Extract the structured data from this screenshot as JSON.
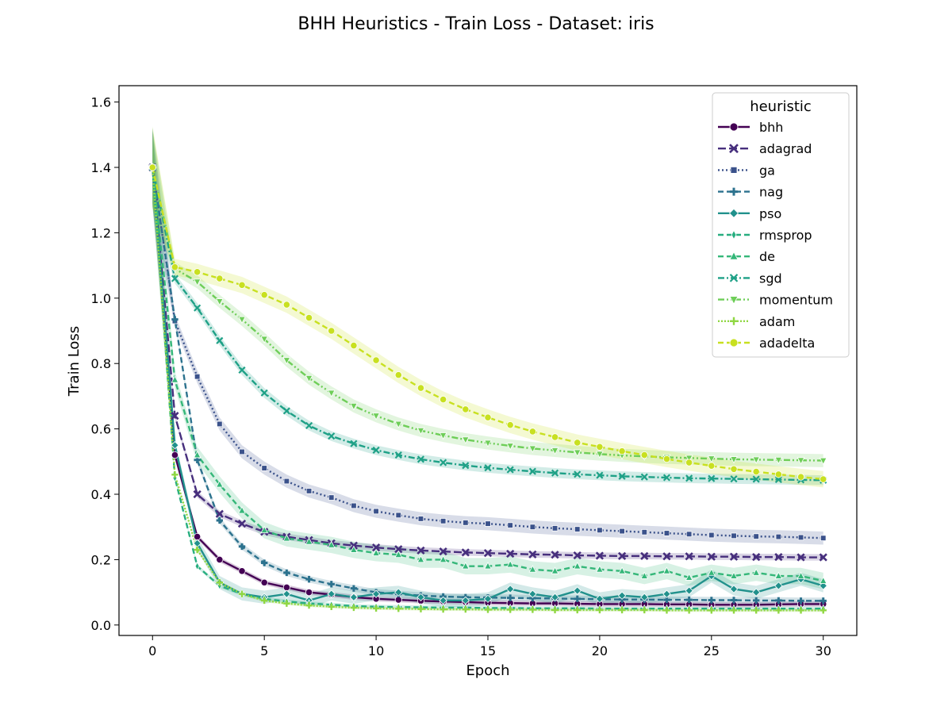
{
  "chart_data": {
    "type": "line",
    "title": "BHH Heuristics - Train Loss - Dataset: iris",
    "xlabel": "Epoch",
    "ylabel": "Train Loss",
    "xlim": [
      -1.5,
      31.5
    ],
    "ylim": [
      -0.032,
      1.65
    ],
    "xticks": [
      0,
      5,
      10,
      15,
      20,
      25,
      30
    ],
    "yticks": [
      0.0,
      0.2,
      0.4,
      0.6,
      0.8,
      1.0,
      1.2,
      1.4,
      1.6
    ],
    "grid": false,
    "legend": {
      "title": "heuristic",
      "placement": "top-right"
    },
    "x": [
      0,
      1,
      2,
      3,
      4,
      5,
      6,
      7,
      8,
      9,
      10,
      11,
      12,
      13,
      14,
      15,
      16,
      17,
      18,
      19,
      20,
      21,
      22,
      23,
      24,
      25,
      26,
      27,
      28,
      29,
      30
    ],
    "series": [
      {
        "name": "bhh",
        "color": "#440154",
        "dash": "solid",
        "marker": "circle",
        "band": 0.008,
        "values": [
          1.4,
          0.52,
          0.27,
          0.2,
          0.165,
          0.13,
          0.115,
          0.1,
          0.093,
          0.085,
          0.08,
          0.077,
          0.074,
          0.072,
          0.07,
          0.068,
          0.067,
          0.066,
          0.066,
          0.065,
          0.064,
          0.064,
          0.064,
          0.063,
          0.063,
          0.062,
          0.062,
          0.062,
          0.063,
          0.064,
          0.064
        ]
      },
      {
        "name": "adagrad",
        "color": "#472f7d",
        "dash": "long",
        "marker": "x",
        "band": 0.01,
        "values": [
          1.4,
          0.64,
          0.4,
          0.34,
          0.31,
          0.285,
          0.27,
          0.26,
          0.25,
          0.243,
          0.237,
          0.232,
          0.228,
          0.225,
          0.222,
          0.22,
          0.218,
          0.216,
          0.215,
          0.213,
          0.212,
          0.211,
          0.211,
          0.21,
          0.21,
          0.209,
          0.209,
          0.208,
          0.208,
          0.207,
          0.207
        ]
      },
      {
        "name": "ga",
        "color": "#3b528b",
        "dash": "dot",
        "marker": "square",
        "band": 0.02,
        "values": [
          1.4,
          0.93,
          0.76,
          0.615,
          0.53,
          0.48,
          0.44,
          0.41,
          0.39,
          0.365,
          0.348,
          0.336,
          0.325,
          0.318,
          0.313,
          0.31,
          0.305,
          0.3,
          0.296,
          0.293,
          0.29,
          0.287,
          0.284,
          0.281,
          0.278,
          0.275,
          0.273,
          0.271,
          0.27,
          0.268,
          0.266
        ]
      },
      {
        "name": "nag",
        "color": "#2c728e",
        "dash": "dashed",
        "marker": "plus",
        "band": 0.01,
        "values": [
          1.4,
          0.935,
          0.505,
          0.32,
          0.24,
          0.19,
          0.16,
          0.14,
          0.125,
          0.112,
          0.1,
          0.095,
          0.09,
          0.087,
          0.085,
          0.084,
          0.083,
          0.082,
          0.081,
          0.08,
          0.079,
          0.078,
          0.078,
          0.077,
          0.077,
          0.076,
          0.076,
          0.075,
          0.075,
          0.074,
          0.074
        ]
      },
      {
        "name": "pso",
        "color": "#21918c",
        "dash": "solid",
        "marker": "diamond",
        "band": 0.02,
        "values": [
          1.4,
          0.55,
          0.25,
          0.13,
          0.095,
          0.085,
          0.095,
          0.075,
          0.095,
          0.085,
          0.095,
          0.1,
          0.085,
          0.075,
          0.075,
          0.08,
          0.11,
          0.095,
          0.085,
          0.105,
          0.08,
          0.09,
          0.085,
          0.095,
          0.105,
          0.15,
          0.11,
          0.1,
          0.12,
          0.14,
          0.12
        ]
      },
      {
        "name": "rmsprop",
        "color": "#28ae80",
        "dash": "dashed",
        "marker": "thin_diamond",
        "band": 0.006,
        "values": [
          1.4,
          0.45,
          0.18,
          0.12,
          0.095,
          0.08,
          0.072,
          0.066,
          0.062,
          0.058,
          0.056,
          0.055,
          0.054,
          0.053,
          0.053,
          0.052,
          0.052,
          0.051,
          0.051,
          0.051,
          0.05,
          0.05,
          0.05,
          0.05,
          0.05,
          0.05,
          0.05,
          0.05,
          0.05,
          0.05,
          0.05
        ]
      },
      {
        "name": "de",
        "color": "#35b779",
        "dash": "dashed",
        "marker": "triangle-up",
        "band": 0.025,
        "values": [
          1.4,
          0.75,
          0.52,
          0.43,
          0.35,
          0.29,
          0.265,
          0.255,
          0.245,
          0.23,
          0.22,
          0.215,
          0.2,
          0.2,
          0.18,
          0.18,
          0.185,
          0.17,
          0.165,
          0.18,
          0.17,
          0.165,
          0.15,
          0.165,
          0.145,
          0.16,
          0.15,
          0.16,
          0.15,
          0.15,
          0.135
        ]
      },
      {
        "name": "sgd",
        "color": "#1fa187",
        "dash": "dashdot",
        "marker": "x-filled",
        "band": 0.015,
        "values": [
          1.4,
          1.06,
          0.97,
          0.87,
          0.78,
          0.71,
          0.655,
          0.61,
          0.578,
          0.555,
          0.535,
          0.52,
          0.507,
          0.497,
          0.488,
          0.481,
          0.475,
          0.47,
          0.465,
          0.461,
          0.458,
          0.455,
          0.453,
          0.451,
          0.449,
          0.448,
          0.447,
          0.446,
          0.445,
          0.444,
          0.443
        ]
      },
      {
        "name": "momentum",
        "color": "#6ece58",
        "dash": "dashdotdot",
        "marker": "triangle-down",
        "band": 0.02,
        "values": [
          1.4,
          1.09,
          1.05,
          0.99,
          0.935,
          0.875,
          0.81,
          0.755,
          0.71,
          0.67,
          0.64,
          0.615,
          0.595,
          0.58,
          0.567,
          0.557,
          0.548,
          0.54,
          0.534,
          0.528,
          0.523,
          0.519,
          0.516,
          0.513,
          0.511,
          0.509,
          0.507,
          0.506,
          0.505,
          0.504,
          0.503
        ]
      },
      {
        "name": "adam",
        "color": "#90d743",
        "dash": "dotted2",
        "marker": "plus-filled",
        "band": 0.005,
        "values": [
          1.4,
          0.46,
          0.23,
          0.13,
          0.095,
          0.075,
          0.066,
          0.06,
          0.056,
          0.053,
          0.051,
          0.05,
          0.049,
          0.048,
          0.048,
          0.047,
          0.047,
          0.047,
          0.046,
          0.046,
          0.046,
          0.046,
          0.046,
          0.045,
          0.045,
          0.045,
          0.045,
          0.045,
          0.045,
          0.045,
          0.045
        ]
      },
      {
        "name": "adadelta",
        "color": "#c8e020",
        "dash": "dashed",
        "marker": "circle",
        "band": 0.025,
        "values": [
          1.4,
          1.095,
          1.08,
          1.06,
          1.04,
          1.01,
          0.98,
          0.94,
          0.9,
          0.855,
          0.81,
          0.765,
          0.725,
          0.69,
          0.66,
          0.635,
          0.612,
          0.592,
          0.575,
          0.558,
          0.545,
          0.532,
          0.52,
          0.508,
          0.497,
          0.487,
          0.477,
          0.469,
          0.461,
          0.453,
          0.446
        ]
      }
    ]
  }
}
